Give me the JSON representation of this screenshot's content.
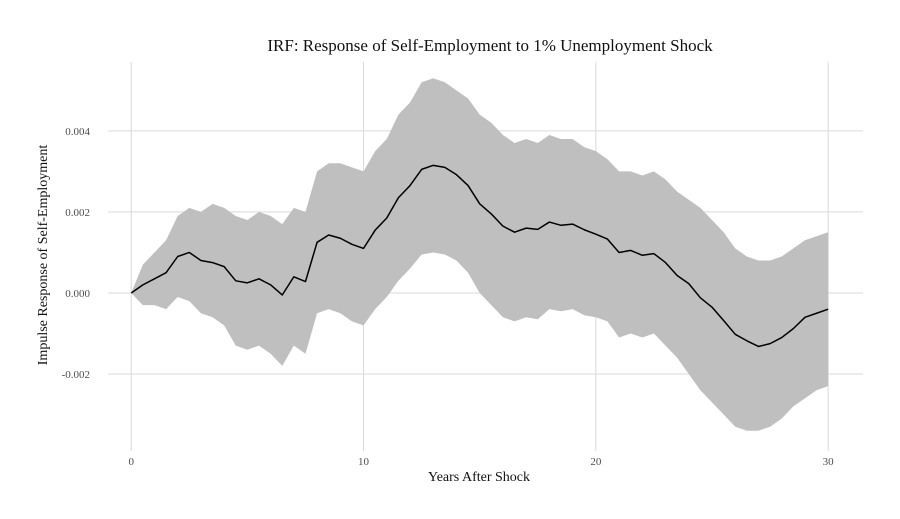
{
  "chart_data": {
    "type": "line",
    "title": "IRF: Response of Self-Employment to 1% Unemployment Shock",
    "xlabel": "Years After Shock",
    "ylabel": "Impulse Response of Self-Employment",
    "xlim": [
      -1,
      31.5
    ],
    "ylim": [
      -0.0039,
      0.0057
    ],
    "x_ticks": [
      0,
      10,
      20,
      30
    ],
    "x_tick_labels": [
      "0",
      "10",
      "20",
      "30"
    ],
    "y_ticks": [
      -0.002,
      0.0,
      0.002,
      0.004
    ],
    "y_tick_labels": [
      "-0.002",
      "0.000",
      "0.002",
      "0.004"
    ],
    "grid": true,
    "legend": "none",
    "colors": {
      "line": "#000000",
      "band": "#bfbfbf",
      "grid": "#d9d9d9"
    },
    "series": [
      {
        "role": "estimate",
        "x": [
          0,
          0.5,
          1,
          1.5,
          2,
          2.5,
          3,
          3.5,
          4,
          4.5,
          5,
          5.5,
          6,
          6.5,
          7,
          7.5,
          8,
          8.5,
          9,
          9.5,
          10,
          10.5,
          11,
          11.5,
          12,
          12.5,
          13,
          13.5,
          14,
          14.5,
          15,
          15.5,
          16,
          16.5,
          17,
          17.5,
          18,
          18.5,
          19,
          19.5,
          20,
          20.5,
          21,
          21.5,
          22,
          22.5,
          23,
          23.5,
          24,
          24.5,
          25,
          25.5,
          26,
          26.5,
          27,
          27.5,
          28,
          28.5,
          29,
          29.5,
          30
        ],
        "values": [
          0,
          0.0002,
          0.00035,
          0.0005,
          0.0009,
          0.001,
          0.0008,
          0.00075,
          0.00065,
          0.0003,
          0.00025,
          0.00035,
          0.0002,
          -5e-05,
          0.0004,
          0.00028,
          0.00125,
          0.00143,
          0.00135,
          0.0012,
          0.0011,
          0.00155,
          0.00185,
          0.00235,
          0.00265,
          0.00305,
          0.00315,
          0.0031,
          0.00292,
          0.00265,
          0.0022,
          0.00195,
          0.00165,
          0.0015,
          0.0016,
          0.00157,
          0.00175,
          0.00167,
          0.0017,
          0.00156,
          0.00145,
          0.00133,
          0.001,
          0.00105,
          0.00093,
          0.00097,
          0.00075,
          0.00043,
          0.00023,
          -0.00012,
          -0.00035,
          -0.00068,
          -0.00102,
          -0.00118,
          -0.00132,
          -0.00125,
          -0.0011,
          -0.00088,
          -0.0006,
          -0.0005,
          -0.0004
        ]
      },
      {
        "role": "upper_bound",
        "x": [
          0,
          0.5,
          1,
          1.5,
          2,
          2.5,
          3,
          3.5,
          4,
          4.5,
          5,
          5.5,
          6,
          6.5,
          7,
          7.5,
          8,
          8.5,
          9,
          9.5,
          10,
          10.5,
          11,
          11.5,
          12,
          12.5,
          13,
          13.5,
          14,
          14.5,
          15,
          15.5,
          16,
          16.5,
          17,
          17.5,
          18,
          18.5,
          19,
          19.5,
          20,
          20.5,
          21,
          21.5,
          22,
          22.5,
          23,
          23.5,
          24,
          24.5,
          25,
          25.5,
          26,
          26.5,
          27,
          27.5,
          28,
          28.5,
          29,
          29.5,
          30
        ],
        "values": [
          0,
          0.0007,
          0.001,
          0.0013,
          0.0019,
          0.0021,
          0.002,
          0.0022,
          0.0021,
          0.0019,
          0.0018,
          0.002,
          0.0019,
          0.0017,
          0.0021,
          0.002,
          0.003,
          0.0032,
          0.0032,
          0.0031,
          0.003,
          0.0035,
          0.0038,
          0.0044,
          0.0047,
          0.0052,
          0.0053,
          0.0052,
          0.005,
          0.0048,
          0.0044,
          0.0042,
          0.0039,
          0.0037,
          0.0038,
          0.0037,
          0.0039,
          0.0038,
          0.0038,
          0.0036,
          0.0035,
          0.0033,
          0.003,
          0.003,
          0.0029,
          0.003,
          0.0028,
          0.0025,
          0.0023,
          0.0021,
          0.0018,
          0.0015,
          0.0011,
          0.0009,
          0.0008,
          0.0008,
          0.0009,
          0.0011,
          0.0013,
          0.0014,
          0.0015
        ]
      },
      {
        "role": "lower_bound",
        "x": [
          0,
          0.5,
          1,
          1.5,
          2,
          2.5,
          3,
          3.5,
          4,
          4.5,
          5,
          5.5,
          6,
          6.5,
          7,
          7.5,
          8,
          8.5,
          9,
          9.5,
          10,
          10.5,
          11,
          11.5,
          12,
          12.5,
          13,
          13.5,
          14,
          14.5,
          15,
          15.5,
          16,
          16.5,
          17,
          17.5,
          18,
          18.5,
          19,
          19.5,
          20,
          20.5,
          21,
          21.5,
          22,
          22.5,
          23,
          23.5,
          24,
          24.5,
          25,
          25.5,
          26,
          26.5,
          27,
          27.5,
          28,
          28.5,
          29,
          29.5,
          30
        ],
        "values": [
          0,
          -0.0003,
          -0.0003,
          -0.0004,
          -0.0001,
          -0.0002,
          -0.0005,
          -0.0006,
          -0.0008,
          -0.0013,
          -0.0014,
          -0.0013,
          -0.0015,
          -0.0018,
          -0.0013,
          -0.0015,
          -0.0005,
          -0.0004,
          -0.0005,
          -0.0007,
          -0.0008,
          -0.0004,
          -0.0001,
          0.0003,
          0.0006,
          0.00095,
          0.001,
          0.00095,
          0.0008,
          0.0005,
          0.0,
          -0.0003,
          -0.0006,
          -0.0007,
          -0.0006,
          -0.00065,
          -0.0004,
          -0.00045,
          -0.0004,
          -0.00055,
          -0.0006,
          -0.0007,
          -0.0011,
          -0.001,
          -0.0011,
          -0.001,
          -0.0013,
          -0.0016,
          -0.002,
          -0.0024,
          -0.0027,
          -0.003,
          -0.0033,
          -0.0034,
          -0.0034,
          -0.0033,
          -0.0031,
          -0.0028,
          -0.0026,
          -0.0024,
          -0.0023
        ]
      }
    ]
  }
}
